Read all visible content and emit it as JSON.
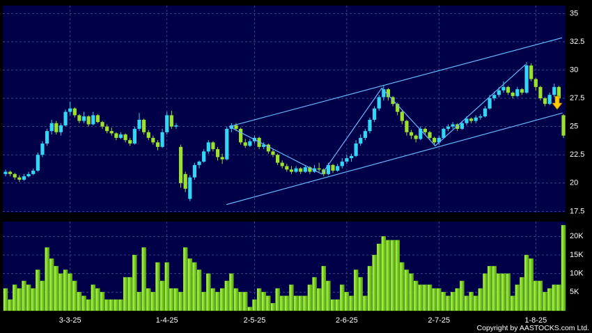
{
  "chart_data": [
    {
      "type": "candlestick",
      "grid": true,
      "up_color": "#33d6f5",
      "down_color": "#9be22d",
      "trend_color": "#66b8ff",
      "ylim": [
        17.4,
        35.7
      ],
      "yticks": [
        17.5,
        20,
        22.5,
        25,
        27.5,
        30,
        32.5,
        35
      ],
      "ohlc": [
        [
          20.8,
          21.2,
          20.6,
          21.0
        ],
        [
          21.0,
          21.1,
          20.6,
          20.8
        ],
        [
          20.8,
          20.9,
          20.3,
          20.5
        ],
        [
          20.5,
          20.7,
          20.1,
          20.3
        ],
        [
          20.3,
          20.8,
          20.2,
          20.6
        ],
        [
          20.6,
          21.0,
          20.5,
          20.8
        ],
        [
          20.8,
          21.3,
          20.7,
          21.1
        ],
        [
          21.1,
          22.7,
          21.0,
          22.5
        ],
        [
          22.5,
          23.7,
          22.3,
          23.5
        ],
        [
          23.5,
          24.8,
          23.3,
          24.6
        ],
        [
          24.6,
          25.6,
          24.3,
          25.3
        ],
        [
          25.3,
          25.5,
          24.3,
          24.5
        ],
        [
          24.5,
          25.3,
          24.2,
          25.1
        ],
        [
          25.1,
          26.5,
          25.0,
          26.3
        ],
        [
          26.3,
          27.2,
          26.0,
          26.6
        ],
        [
          26.6,
          26.7,
          25.8,
          26.0
        ],
        [
          26.0,
          26.1,
          25.3,
          25.5
        ],
        [
          25.5,
          26.3,
          25.3,
          25.9
        ],
        [
          25.9,
          26.0,
          25.0,
          25.2
        ],
        [
          25.2,
          26.3,
          25.1,
          26.0
        ],
        [
          26.0,
          26.1,
          25.3,
          25.4
        ],
        [
          25.4,
          25.5,
          24.8,
          25.0
        ],
        [
          25.0,
          25.2,
          24.4,
          24.6
        ],
        [
          24.6,
          24.9,
          24.2,
          24.4
        ],
        [
          24.4,
          24.5,
          23.8,
          24.0
        ],
        [
          24.0,
          24.5,
          23.9,
          24.3
        ],
        [
          24.3,
          24.4,
          23.6,
          23.8
        ],
        [
          23.8,
          24.0,
          23.3,
          23.5
        ],
        [
          23.5,
          25.0,
          23.4,
          24.8
        ],
        [
          24.8,
          26.2,
          24.6,
          25.6
        ],
        [
          25.6,
          25.7,
          24.3,
          24.5
        ],
        [
          24.5,
          24.7,
          23.8,
          24.0
        ],
        [
          24.0,
          24.2,
          23.4,
          23.6
        ],
        [
          23.6,
          23.8,
          22.9,
          23.2
        ],
        [
          23.2,
          24.8,
          23.1,
          24.5
        ],
        [
          24.5,
          26.3,
          24.3,
          26.0
        ],
        [
          26.0,
          26.4,
          24.8,
          25.0
        ],
        [
          25.0,
          25.3,
          24.8,
          25.1
        ],
        [
          23.2,
          23.4,
          19.6,
          20.0
        ],
        [
          20.8,
          21.0,
          19.2,
          19.5
        ],
        [
          18.6,
          20.7,
          18.4,
          20.5
        ],
        [
          20.5,
          21.8,
          20.3,
          21.6
        ],
        [
          21.6,
          22.0,
          21.3,
          21.9
        ],
        [
          21.9,
          23.0,
          21.8,
          22.8
        ],
        [
          22.8,
          23.8,
          22.6,
          23.6
        ],
        [
          23.6,
          23.7,
          22.8,
          23.0
        ],
        [
          23.0,
          23.2,
          22.0,
          22.3
        ],
        [
          22.3,
          22.6,
          21.7,
          22.1
        ],
        [
          22.1,
          25.0,
          22.0,
          24.8
        ],
        [
          24.8,
          25.3,
          24.5,
          25.1
        ],
        [
          25.1,
          25.3,
          24.6,
          24.8
        ],
        [
          24.8,
          24.9,
          23.4,
          23.6
        ],
        [
          23.6,
          23.9,
          23.1,
          23.3
        ],
        [
          23.3,
          23.9,
          23.2,
          23.7
        ],
        [
          23.7,
          24.2,
          23.5,
          24.0
        ],
        [
          24.0,
          24.1,
          23.0,
          23.2
        ],
        [
          23.2,
          23.6,
          23.0,
          23.4
        ],
        [
          23.4,
          23.5,
          22.6,
          22.8
        ],
        [
          22.8,
          23.0,
          22.3,
          22.5
        ],
        [
          22.5,
          22.6,
          21.6,
          21.8
        ],
        [
          21.8,
          22.0,
          21.3,
          21.5
        ],
        [
          21.5,
          21.7,
          21.0,
          21.2
        ],
        [
          21.2,
          21.5,
          20.8,
          21.0
        ],
        [
          21.0,
          21.5,
          20.9,
          21.3
        ],
        [
          21.3,
          21.4,
          20.8,
          21.0
        ],
        [
          21.0,
          21.6,
          20.9,
          21.4
        ],
        [
          21.4,
          21.5,
          20.8,
          21.0
        ],
        [
          21.0,
          21.6,
          20.9,
          21.3
        ],
        [
          21.3,
          21.8,
          21.0,
          21.2
        ],
        [
          21.2,
          21.3,
          20.6,
          20.8
        ],
        [
          20.8,
          21.8,
          20.7,
          21.6
        ],
        [
          21.6,
          21.7,
          20.9,
          21.1
        ],
        [
          21.1,
          21.7,
          21.0,
          21.5
        ],
        [
          21.5,
          22.2,
          21.3,
          21.9
        ],
        [
          21.9,
          22.5,
          21.7,
          22.2
        ],
        [
          22.2,
          22.6,
          21.9,
          22.4
        ],
        [
          22.4,
          23.8,
          22.3,
          23.5
        ],
        [
          23.5,
          24.3,
          23.3,
          24.0
        ],
        [
          24.0,
          24.8,
          23.8,
          24.6
        ],
        [
          24.6,
          25.8,
          24.4,
          25.6
        ],
        [
          25.6,
          26.8,
          25.4,
          26.6
        ],
        [
          26.6,
          27.8,
          26.4,
          27.6
        ],
        [
          27.6,
          28.6,
          27.3,
          28.3
        ],
        [
          28.3,
          28.4,
          27.3,
          27.6
        ],
        [
          27.6,
          27.7,
          26.8,
          27.0
        ],
        [
          27.0,
          27.1,
          26.0,
          26.3
        ],
        [
          26.3,
          26.4,
          25.2,
          25.5
        ],
        [
          25.5,
          25.6,
          24.2,
          24.5
        ],
        [
          24.5,
          24.7,
          23.9,
          24.2
        ],
        [
          24.2,
          24.3,
          23.6,
          23.9
        ],
        [
          23.9,
          25.0,
          23.8,
          24.8
        ],
        [
          24.8,
          24.9,
          24.3,
          24.5
        ],
        [
          24.5,
          24.6,
          23.8,
          24.0
        ],
        [
          24.0,
          24.1,
          23.3,
          23.6
        ],
        [
          23.6,
          24.2,
          23.4,
          24.0
        ],
        [
          24.0,
          24.9,
          23.9,
          24.8
        ],
        [
          24.8,
          25.2,
          24.6,
          25.0
        ],
        [
          25.0,
          25.4,
          24.8,
          25.2
        ],
        [
          25.2,
          25.3,
          24.6,
          24.8
        ],
        [
          24.8,
          25.5,
          24.7,
          25.3
        ],
        [
          25.3,
          25.9,
          25.1,
          25.7
        ],
        [
          25.7,
          25.8,
          25.3,
          25.5
        ],
        [
          25.5,
          26.0,
          25.3,
          25.8
        ],
        [
          25.8,
          26.1,
          25.6,
          25.9
        ],
        [
          25.9,
          26.8,
          25.8,
          26.6
        ],
        [
          26.6,
          27.8,
          26.5,
          27.5
        ],
        [
          27.5,
          28.1,
          27.3,
          27.8
        ],
        [
          27.8,
          28.5,
          27.6,
          28.2
        ],
        [
          28.2,
          29.0,
          28.0,
          28.5
        ],
        [
          28.5,
          28.6,
          27.8,
          28.0
        ],
        [
          28.0,
          28.1,
          27.5,
          27.7
        ],
        [
          27.7,
          28.5,
          27.6,
          28.3
        ],
        [
          28.3,
          28.4,
          27.8,
          28.0
        ],
        [
          28.0,
          30.7,
          27.9,
          30.4
        ],
        [
          30.4,
          30.6,
          29.0,
          29.2
        ],
        [
          29.2,
          29.3,
          28.2,
          28.5
        ],
        [
          28.5,
          28.6,
          27.3,
          27.5
        ],
        [
          27.5,
          27.6,
          26.8,
          27.0
        ],
        [
          27.0,
          28.0,
          26.9,
          27.8
        ],
        [
          27.8,
          28.8,
          27.6,
          28.5
        ],
        [
          28.5,
          28.6,
          27.3,
          27.5
        ],
        [
          26.0,
          26.1,
          24.0,
          24.2
        ]
      ],
      "trend_lines": [
        {
          "x": [
            48.5,
            120.7
          ],
          "y": [
            25.0,
            32.85
          ]
        },
        {
          "x": [
            47.9,
            120.8
          ],
          "y": [
            18.1,
            26.2
          ]
        },
        {
          "x": [
            48.5,
            68.6,
            81.6,
            93.2,
            112.8
          ],
          "y": [
            25.0,
            20.8,
            28.4,
            23.3,
            30.5
          ]
        }
      ]
    },
    {
      "type": "bar",
      "grid": true,
      "color": "#7fe021",
      "ylim": [
        0,
        24000
      ],
      "yticks": [
        {
          "value": 5000,
          "label": "5K"
        },
        {
          "value": 10000,
          "label": "10K"
        },
        {
          "value": 15000,
          "label": "15K"
        },
        {
          "value": 20000,
          "label": "20K"
        }
      ],
      "categories": [
        null,
        null,
        null,
        null,
        null,
        null,
        null,
        null,
        null,
        null,
        null,
        null,
        null,
        null,
        "3-3-25",
        null,
        null,
        null,
        null,
        null,
        null,
        null,
        null,
        null,
        null,
        null,
        null,
        null,
        null,
        null,
        null,
        null,
        null,
        null,
        null,
        "1-4-25",
        null,
        null,
        null,
        null,
        null,
        null,
        null,
        null,
        null,
        null,
        null,
        null,
        null,
        null,
        null,
        null,
        null,
        null,
        "2-5-25",
        null,
        null,
        null,
        null,
        null,
        null,
        null,
        null,
        null,
        null,
        null,
        null,
        null,
        null,
        null,
        null,
        null,
        null,
        null,
        "2-6-25",
        null,
        null,
        null,
        null,
        null,
        null,
        null,
        null,
        null,
        null,
        null,
        null,
        null,
        null,
        null,
        null,
        null,
        null,
        null,
        "2-7-25",
        null,
        null,
        null,
        null,
        null,
        null,
        null,
        null,
        null,
        null,
        null,
        null,
        null,
        null,
        null,
        null,
        null,
        null,
        null,
        null,
        "1-8-25",
        null,
        null,
        null,
        null,
        null,
        null
      ],
      "values": [
        6000,
        3000,
        7000,
        6000,
        8000,
        7000,
        6000,
        11000,
        8000,
        17000,
        14000,
        12000,
        10000,
        11000,
        10000,
        8000,
        5000,
        4000,
        3000,
        7000,
        6000,
        5000,
        3000,
        3000,
        3000,
        3000,
        9000,
        9000,
        15000,
        5000,
        17000,
        6000,
        5000,
        13000,
        8000,
        13000,
        6000,
        6000,
        5000,
        17000,
        14000,
        13000,
        11000,
        5000,
        10000,
        6000,
        5000,
        6000,
        8000,
        10000,
        6000,
        5000,
        5000,
        1000,
        3000,
        6000,
        5000,
        4000,
        2000,
        6000,
        4000,
        4000,
        7000,
        4000,
        4000,
        4000,
        7000,
        9000,
        6000,
        12000,
        8000,
        3000,
        3000,
        7000,
        5000,
        4000,
        11000,
        9000,
        4000,
        12000,
        15000,
        18000,
        20000,
        19000,
        19000,
        19000,
        13000,
        11000,
        10000,
        8000,
        7000,
        7000,
        7000,
        6000,
        6000,
        5000,
        4000,
        5000,
        6000,
        8000,
        4000,
        5000,
        4000,
        6000,
        10000,
        12000,
        12000,
        10000,
        10000,
        10000,
        4000,
        7000,
        9000,
        15000,
        14000,
        8000,
        8000,
        5000,
        6000,
        7000,
        7000,
        23000
      ]
    }
  ],
  "footer": "Copyright by AASTOCKS.com Ltd."
}
